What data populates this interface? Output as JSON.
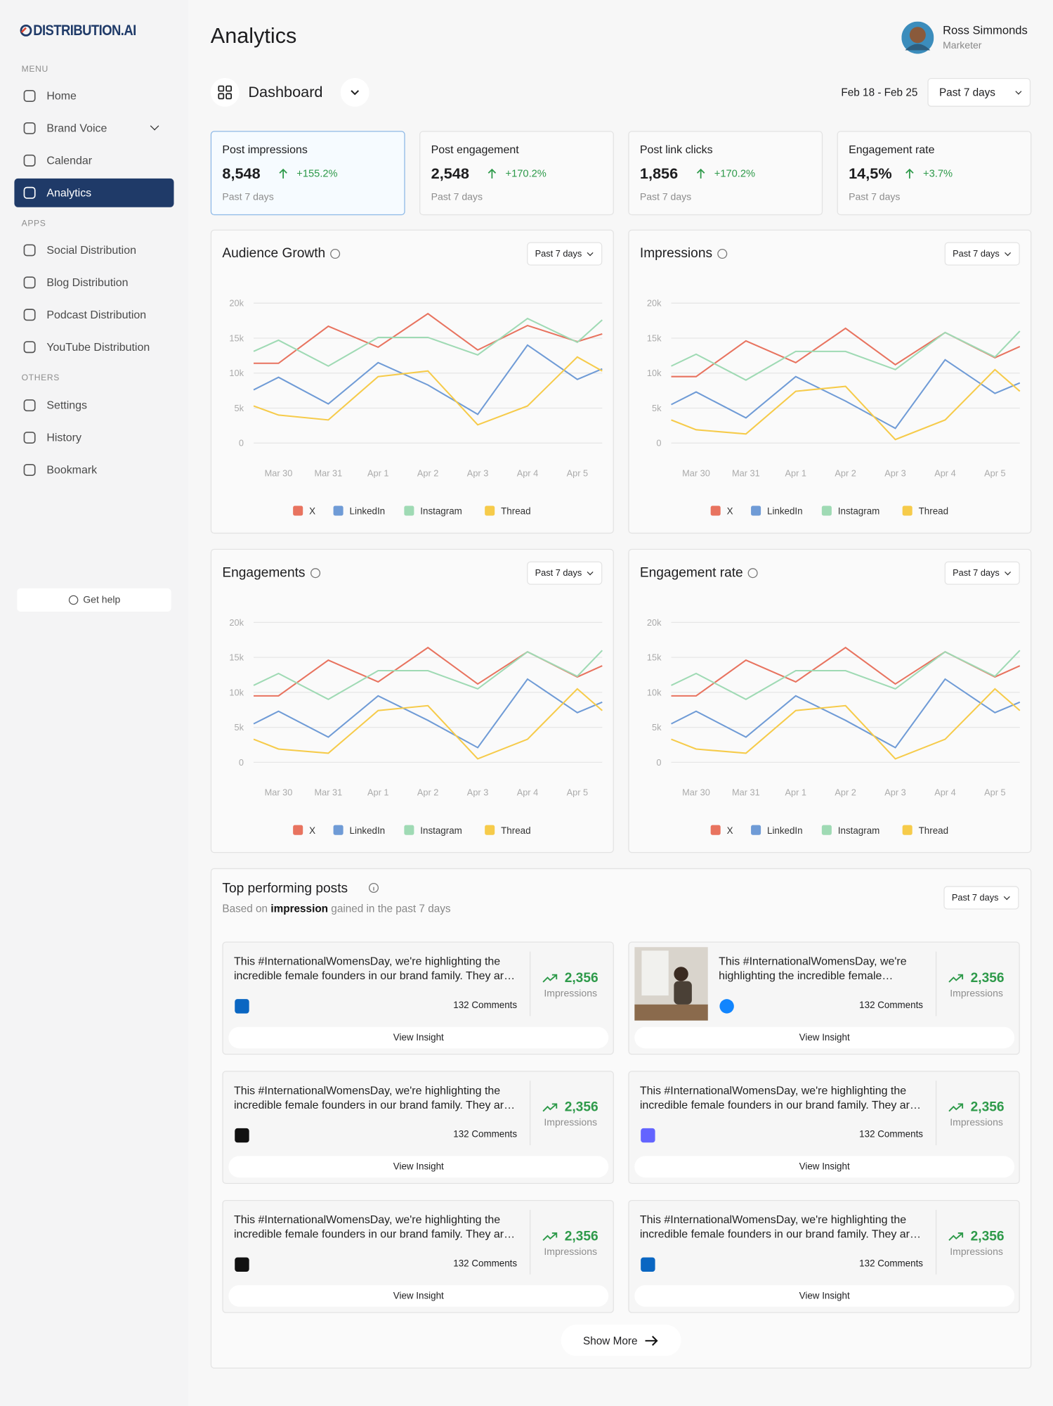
{
  "brand": "DISTRIBUTION.AI",
  "sidebar": {
    "menu_label": "MENU",
    "menu": [
      "Home",
      "Brand Voice",
      "Calendar",
      "Analytics"
    ],
    "apps_label": "APPS",
    "apps": [
      "Social Distribution",
      "Blog Distribution",
      "Podcast Distribution",
      "YouTube Distribution"
    ],
    "others_label": "OTHERS",
    "others": [
      "Settings",
      "History",
      "Bookmark"
    ],
    "help": "Get help"
  },
  "header": {
    "title": "Analytics",
    "user_name": "Ross Simmonds",
    "user_role": "Marketer",
    "view": "Dashboard",
    "date_range": "Feb 18 - Feb 25",
    "period": "Past 7 days"
  },
  "stats": [
    {
      "label": "Post impressions",
      "value": "8,548",
      "change": "+155.2%",
      "period": "Past 7 days"
    },
    {
      "label": "Post engagement",
      "value": "2,548",
      "change": "+170.2%",
      "period": "Past 7 days"
    },
    {
      "label": "Post link clicks",
      "value": "1,856",
      "change": "+170.2%",
      "period": "Past 7 days"
    },
    {
      "label": "Engagement rate",
      "value": "14,5%",
      "change": "+3.7%",
      "period": "Past 7 days"
    }
  ],
  "chart_data": [
    {
      "type": "line",
      "title": "Audience Growth",
      "period": "Past 7 days",
      "categories": [
        null,
        "Mar 30",
        "Mar 31",
        "Apr 1",
        "Apr 2",
        "Apr 3",
        "Apr 4",
        "Apr 5",
        null
      ],
      "ylim": [
        0,
        20000
      ],
      "yticks": [
        0,
        {
          "value": 5000,
          "label": "5k"
        },
        {
          "value": 10000,
          "label": "10k"
        },
        {
          "value": 15000,
          "label": "15k"
        },
        {
          "value": 20000,
          "label": "20k"
        }
      ],
      "grid": true,
      "series": [
        {
          "name": "X",
          "color": "#e8735f",
          "values": [
            11400,
            11400,
            16700,
            13700,
            18500,
            13300,
            16800,
            14500,
            15600
          ]
        },
        {
          "name": "LinkedIn",
          "color": "#6f9bd6",
          "values": [
            7600,
            9400,
            5600,
            11500,
            8300,
            4100,
            14000,
            9100,
            10600
          ]
        },
        {
          "name": "Instagram",
          "color": "#9fdab4",
          "values": [
            13100,
            14700,
            11000,
            15100,
            15100,
            12600,
            17800,
            14400,
            17600
          ]
        },
        {
          "name": "Thread",
          "color": "#f6cb4a",
          "values": [
            5300,
            4000,
            3300,
            9500,
            10300,
            2600,
            5300,
            12300,
            10300
          ]
        }
      ]
    },
    {
      "type": "line",
      "title": "Impressions",
      "period": "Past 7 days",
      "categories": [
        null,
        "Mar 30",
        "Mar 31",
        "Apr 1",
        "Apr 2",
        "Apr 3",
        "Apr 4",
        "Apr 5",
        null
      ],
      "ylim": [
        0,
        20000
      ],
      "yticks": [
        0,
        {
          "value": 5000,
          "label": "5k"
        },
        {
          "value": 10000,
          "label": "10k"
        },
        {
          "value": 15000,
          "label": "15k"
        },
        {
          "value": 20000,
          "label": "20k"
        }
      ],
      "grid": true,
      "series": [
        {
          "name": "X",
          "color": "#e8735f",
          "values": [
            9500,
            9500,
            14600,
            11500,
            16400,
            11200,
            15800,
            12200,
            13800
          ]
        },
        {
          "name": "LinkedIn",
          "color": "#6f9bd6",
          "values": [
            5500,
            7300,
            3600,
            9500,
            6000,
            2100,
            11900,
            7100,
            8600
          ]
        },
        {
          "name": "Instagram",
          "color": "#9fdab4",
          "values": [
            11000,
            12700,
            9000,
            13100,
            13100,
            10500,
            15800,
            12300,
            16000
          ]
        },
        {
          "name": "Thread",
          "color": "#f6cb4a",
          "values": [
            3300,
            1900,
            1300,
            7400,
            8100,
            500,
            3300,
            10500,
            7400
          ]
        }
      ]
    },
    {
      "type": "line",
      "title": "Engagements",
      "period": "Past 7 days",
      "categories": [
        null,
        "Mar 30",
        "Mar 31",
        "Apr 1",
        "Apr 2",
        "Apr 3",
        "Apr 4",
        "Apr 5",
        null
      ],
      "ylim": [
        0,
        20000
      ],
      "yticks": [
        0,
        {
          "value": 5000,
          "label": "5k"
        },
        {
          "value": 10000,
          "label": "10k"
        },
        {
          "value": 15000,
          "label": "15k"
        },
        {
          "value": 20000,
          "label": "20k"
        }
      ],
      "grid": true,
      "series": [
        {
          "name": "X",
          "color": "#e8735f",
          "values": [
            9500,
            9500,
            14600,
            11500,
            16400,
            11200,
            15800,
            12200,
            13800
          ]
        },
        {
          "name": "LinkedIn",
          "color": "#6f9bd6",
          "values": [
            5500,
            7300,
            3600,
            9500,
            6000,
            2100,
            11900,
            7100,
            8600
          ]
        },
        {
          "name": "Instagram",
          "color": "#9fdab4",
          "values": [
            11000,
            12700,
            9000,
            13100,
            13100,
            10500,
            15800,
            12300,
            16000
          ]
        },
        {
          "name": "Thread",
          "color": "#f6cb4a",
          "values": [
            3300,
            1900,
            1300,
            7400,
            8100,
            500,
            3300,
            10500,
            7400
          ]
        }
      ]
    },
    {
      "type": "line",
      "title": "Engagement rate",
      "period": "Past 7 days",
      "categories": [
        null,
        "Mar 30",
        "Mar 31",
        "Apr 1",
        "Apr 2",
        "Apr 3",
        "Apr 4",
        "Apr 5",
        null
      ],
      "ylim": [
        0,
        20000
      ],
      "yticks": [
        0,
        {
          "value": 5000,
          "label": "5k"
        },
        {
          "value": 10000,
          "label": "10k"
        },
        {
          "value": 15000,
          "label": "15k"
        },
        {
          "value": 20000,
          "label": "20k"
        }
      ],
      "grid": true,
      "series": [
        {
          "name": "X",
          "color": "#e8735f",
          "values": [
            9500,
            9500,
            14600,
            11500,
            16400,
            11200,
            15800,
            12200,
            13800
          ]
        },
        {
          "name": "LinkedIn",
          "color": "#6f9bd6",
          "values": [
            5500,
            7300,
            3600,
            9500,
            6000,
            2100,
            11900,
            7100,
            8600
          ]
        },
        {
          "name": "Instagram",
          "color": "#9fdab4",
          "values": [
            11000,
            12700,
            9000,
            13100,
            13100,
            10500,
            15800,
            12300,
            16000
          ]
        },
        {
          "name": "Thread",
          "color": "#f6cb4a",
          "values": [
            3300,
            1900,
            1300,
            7400,
            8100,
            500,
            3300,
            10500,
            7400
          ]
        }
      ]
    }
  ],
  "top_posts": {
    "title": "Top performing posts",
    "subtitle_prefix": "Based on",
    "subtitle_bold": "impression",
    "subtitle_suffix": "gained in the past 7 days",
    "period": "Past 7 days",
    "show_more": "Show More",
    "posts": [
      {
        "text": "This #InternationalWomensDay, we're highlighting the incredible female founders in our brand family. They are shaping the future",
        "comments": "132 Comments",
        "value": "2,356",
        "metric": "Impressions",
        "action": "View Insight"
      },
      {
        "text": "This #InternationalWomensDay, we're highlighting the incredible female founders in our brand family. They are shaping the future",
        "comments": "132 Comments",
        "value": "2,356",
        "metric": "Impressions",
        "action": "View Insight"
      },
      {
        "text": "This #InternationalWomensDay, we're highlighting the incredible female founders in our brand family. They are shaping the future",
        "comments": "132 Comments",
        "value": "2,356",
        "metric": "Impressions",
        "action": "View Insight"
      },
      {
        "text": "This #InternationalWomensDay, we're highlighting the incredible female founders in our brand family. They are shaping the future",
        "comments": "132 Comments",
        "value": "2,356",
        "metric": "Impressions",
        "action": "View Insight"
      },
      {
        "text": "This #InternationalWomensDay, we're highlighting the incredible female founders in our brand family. They are shaping the future",
        "comments": "132 Comments",
        "value": "2,356",
        "metric": "Impressions",
        "action": "View Insight"
      },
      {
        "text": "This #InternationalWomensDay, we're highlighting the incredible female founders in our brand family. They are shaping the future",
        "comments": "132 Comments",
        "value": "2,356",
        "metric": "Impressions",
        "action": "View Insight"
      }
    ]
  }
}
